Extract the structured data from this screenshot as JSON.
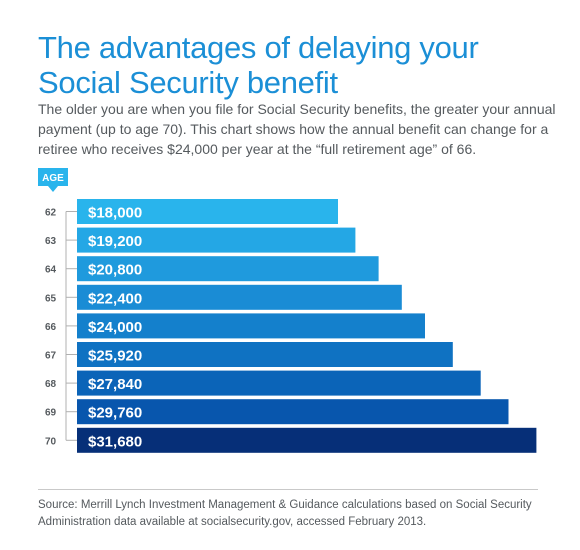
{
  "header": {
    "title": "The advantages of delaying your Social Security benefit",
    "subtitle": "The older you are when you file for Social Security benefits, the greater your annual payment (up to age 70). This chart shows how the annual benefit can change for a retiree who receives $24,000 per year at the “full retirement age” of 66."
  },
  "footer": {
    "source": "Source: Merrill Lynch Investment Management & Guidance calculations based on Social Security Administration data available at socialsecurity.gov, accessed February 2013."
  },
  "chart_data": {
    "type": "bar",
    "orientation": "horizontal",
    "axis_label": "AGE",
    "categories": [
      "62",
      "63",
      "64",
      "65",
      "66",
      "67",
      "68",
      "69",
      "70"
    ],
    "values": [
      18000,
      19200,
      20800,
      22400,
      24000,
      25920,
      27840,
      29760,
      31680
    ],
    "value_labels": [
      "$18,000",
      "$19,200",
      "$20,800",
      "$22,400",
      "$24,000",
      "$25,920",
      "$27,840",
      "$29,760",
      "$31,680"
    ],
    "colors": [
      "#29b4ec",
      "#24a7e5",
      "#1f9add",
      "#1a8cd5",
      "#1480cc",
      "#0f72c2",
      "#0b64b8",
      "#0856ad",
      "#062f78"
    ],
    "label_color": "#ffffff",
    "axis_color": "#b0b0b0",
    "badge_color": "#29b4ec",
    "grid": false,
    "legend": "none"
  }
}
